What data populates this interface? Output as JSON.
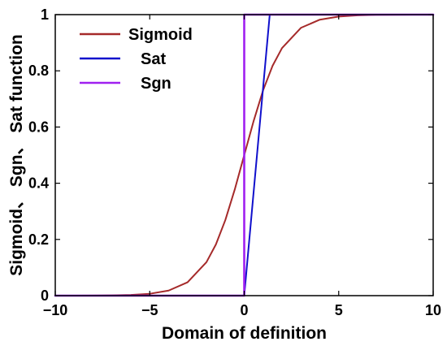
{
  "chart_data": {
    "type": "line",
    "title": "",
    "xlabel": "Domain of definition",
    "ylabel": "Sigmoid、 Sgn、 Sat function",
    "xlim": [
      -10,
      10
    ],
    "ylim": [
      0,
      1
    ],
    "xticks": [
      -10,
      -5,
      0,
      5,
      10
    ],
    "xtick_labels": [
      "−10",
      "−5",
      "0",
      "5",
      "10"
    ],
    "yticks": [
      0,
      0.2,
      0.4,
      0.6,
      0.8,
      1
    ],
    "ytick_labels": [
      "0",
      "0.2",
      "0.4",
      "0.6",
      "0.8",
      "1"
    ],
    "grid": false,
    "legend_position": "top-left",
    "series": [
      {
        "name": "Sigmoid",
        "color": "#a52a2a",
        "x": [
          -10,
          -9,
          -8,
          -7,
          -6,
          -5,
          -4,
          -3,
          -2,
          -1.5,
          -1,
          -0.5,
          0,
          0.5,
          1,
          1.5,
          2,
          3,
          4,
          5,
          6,
          7,
          8,
          9,
          10
        ],
        "y": [
          4.54e-05,
          0.000123,
          0.000335,
          0.000911,
          0.00247,
          0.00669,
          0.018,
          0.0474,
          0.119,
          0.182,
          0.269,
          0.378,
          0.5,
          0.622,
          0.731,
          0.818,
          0.881,
          0.953,
          0.982,
          0.993,
          0.9975,
          0.9991,
          0.99966,
          0.99988,
          0.99995
        ]
      },
      {
        "name": "Sat",
        "color": "#1010cc",
        "x": [
          -10,
          0,
          1.35,
          10
        ],
        "y": [
          0,
          0,
          1,
          1
        ]
      },
      {
        "name": "Sgn",
        "color": "#a020f0",
        "x": [
          -10,
          0,
          0,
          10
        ],
        "y": [
          0,
          0,
          1,
          1
        ]
      }
    ]
  }
}
